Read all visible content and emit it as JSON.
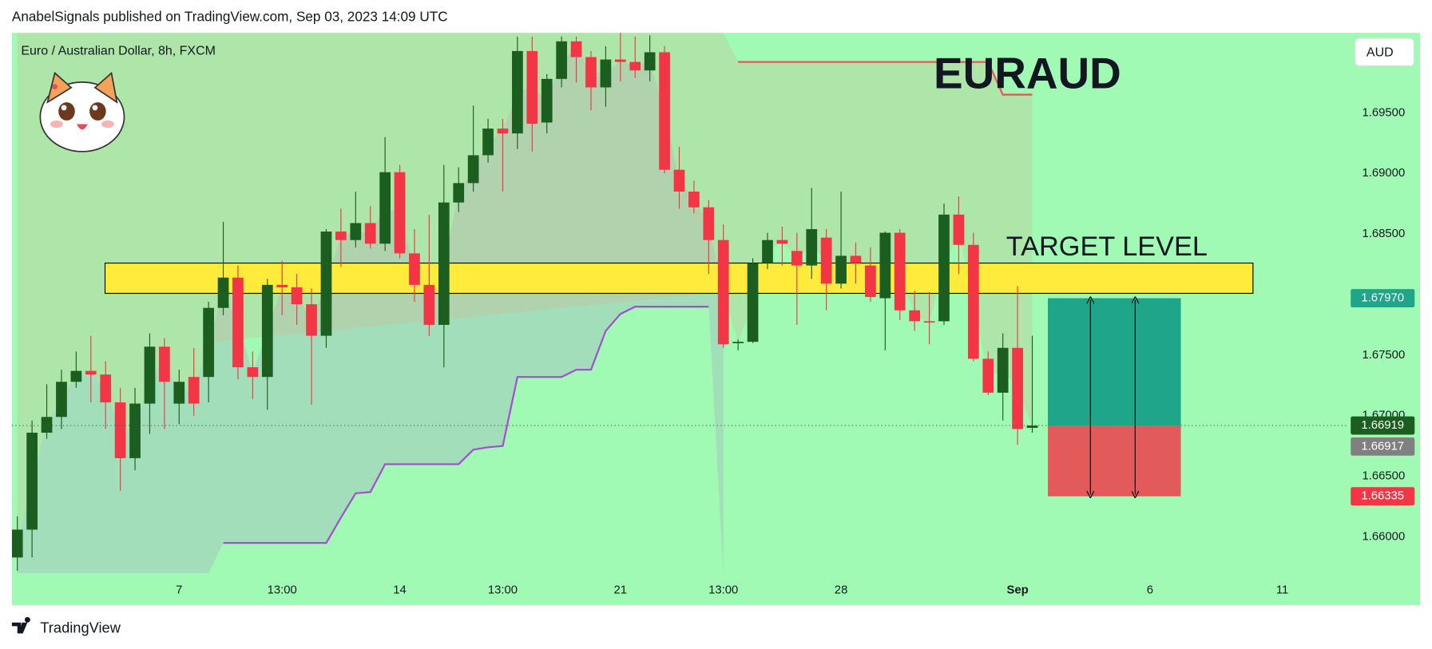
{
  "header": "AnabelSignals published on TradingView.com, Sep 03, 2023 14:09 UTC",
  "footer": "TradingView",
  "chart_data": {
    "type": "candlestick",
    "title": "Euro / Australian Dollar, 8h, FXCM",
    "currency": "AUD",
    "annotation": "EURAUD",
    "up_color": "#1b5e20",
    "down_color": "#f23645",
    "xlim": [
      -0.37,
      90.4
    ],
    "xticks": [
      {
        "value": 11,
        "label": "7"
      },
      {
        "value": 18,
        "label": "13:00"
      },
      {
        "value": 26,
        "label": "14"
      },
      {
        "value": 33,
        "label": "13:00"
      },
      {
        "value": 41,
        "label": "21"
      },
      {
        "value": 48,
        "label": "13:00"
      },
      {
        "value": 56,
        "label": "28"
      },
      {
        "value": 68,
        "label": "Sep"
      },
      {
        "value": 77,
        "label": "6"
      },
      {
        "value": 86,
        "label": "11"
      }
    ],
    "ylim": [
      1.657,
      1.7016
    ],
    "yticks": [
      {
        "value": 1.66,
        "label": "1.66000"
      },
      {
        "value": 1.665,
        "label": "1.66500"
      },
      {
        "value": 1.67,
        "label": "1.67000"
      },
      {
        "value": 1.675,
        "label": "1.67500"
      },
      {
        "value": 1.68,
        "label": "1.68000"
      },
      {
        "value": 1.685,
        "label": "1.68500"
      },
      {
        "value": 1.69,
        "label": "1.69000"
      },
      {
        "value": 1.695,
        "label": "1.69500"
      }
    ],
    "open": [
      1.6583,
      1.6606,
      1.6686,
      1.6699,
      1.6728,
      1.6737,
      1.6734,
      1.6711,
      1.6665,
      1.671,
      1.6757,
      1.671,
      1.6732,
      1.6732,
      1.6789,
      1.6814,
      1.674,
      1.6732,
      1.6808,
      1.6806,
      1.6792,
      1.6766,
      1.6852,
      1.6845,
      1.6859,
      1.6842,
      1.6901,
      1.6834,
      1.6808,
      1.6775,
      1.6876,
      1.6892,
      1.6915,
      1.6937,
      1.6933,
      1.7001,
      1.6942,
      1.6978,
      1.7009,
      1.6996,
      1.6971,
      1.6994,
      1.6992,
      1.6985,
      1.7,
      1.6903,
      1.6885,
      1.6872,
      1.6845,
      1.676,
      1.6761,
      1.6826,
      1.6845,
      1.6836,
      1.6824,
      1.6847,
      1.6809,
      1.6832,
      1.6824,
      1.6797,
      1.6851,
      1.6787,
      1.6778,
      1.6778,
      1.6866,
      1.6841,
      1.6747,
      1.6719,
      1.6756,
      1.669
    ],
    "high": [
      1.6617,
      1.6696,
      1.6726,
      1.6738,
      1.6753,
      1.6766,
      1.6745,
      1.6723,
      1.6723,
      1.6768,
      1.6764,
      1.6738,
      1.6756,
      1.6794,
      1.686,
      1.6824,
      1.6753,
      1.6813,
      1.6828,
      1.6817,
      1.6805,
      1.6854,
      1.6871,
      1.6885,
      1.6873,
      1.693,
      1.6907,
      1.6854,
      1.6866,
      1.6907,
      1.6905,
      1.6956,
      1.6945,
      1.6945,
      1.7013,
      1.7013,
      1.6982,
      1.7013,
      1.7013,
      1.7001,
      1.7005,
      1.7016,
      1.7013,
      1.7014,
      1.7005,
      1.6922,
      1.6894,
      1.6878,
      1.6858,
      1.6763,
      1.683,
      1.6851,
      1.6856,
      1.6851,
      1.6888,
      1.6854,
      1.6885,
      1.6843,
      1.6839,
      1.6852,
      1.6854,
      1.6803,
      1.6802,
      1.6875,
      1.6881,
      1.6851,
      1.6753,
      1.6768,
      1.6807,
      1.6766
    ],
    "low": [
      1.6572,
      1.6583,
      1.6681,
      1.6689,
      1.6723,
      1.6711,
      1.6689,
      1.6638,
      1.6655,
      1.6685,
      1.6689,
      1.6693,
      1.67,
      1.6711,
      1.6783,
      1.673,
      1.6714,
      1.6705,
      1.6783,
      1.6775,
      1.6709,
      1.6756,
      1.6823,
      1.6839,
      1.6838,
      1.6836,
      1.683,
      1.6794,
      1.6766,
      1.674,
      1.6868,
      1.6885,
      1.6909,
      1.6885,
      1.692,
      1.6918,
      1.6933,
      1.6971,
      1.6975,
      1.6952,
      1.6955,
      1.6976,
      1.6979,
      1.6976,
      1.69,
      1.6871,
      1.6867,
      1.6817,
      1.6756,
      1.6754,
      1.676,
      1.6821,
      1.6824,
      1.6775,
      1.6813,
      1.6787,
      1.6805,
      1.6809,
      1.6794,
      1.6754,
      1.6779,
      1.677,
      1.6759,
      1.6775,
      1.6817,
      1.6745,
      1.6717,
      1.6696,
      1.6676,
      1.6686
    ],
    "close": [
      1.6606,
      1.6686,
      1.6699,
      1.6728,
      1.6737,
      1.6734,
      1.6711,
      1.6665,
      1.671,
      1.6757,
      1.6728,
      1.6728,
      1.671,
      1.6789,
      1.6814,
      1.674,
      1.6732,
      1.6808,
      1.6806,
      1.6792,
      1.6766,
      1.6852,
      1.6845,
      1.6859,
      1.6842,
      1.6901,
      1.6834,
      1.6808,
      1.6775,
      1.6876,
      1.6892,
      1.6915,
      1.6937,
      1.6933,
      1.7001,
      1.6941,
      1.6978,
      1.7009,
      1.6996,
      1.6971,
      1.6994,
      1.6992,
      1.6985,
      1.7,
      1.6903,
      1.6885,
      1.6872,
      1.6845,
      1.6759,
      1.6761,
      1.6826,
      1.6845,
      1.6842,
      1.6824,
      1.6854,
      1.6809,
      1.6832,
      1.6826,
      1.6798,
      1.6851,
      1.6787,
      1.6778,
      1.6777,
      1.6866,
      1.6841,
      1.6747,
      1.6719,
      1.6756,
      1.6689,
      1.66919
    ],
    "supertrend": [
      {
        "color": "#a64fd0",
        "fill": "rgba(170,170,200,0.35)",
        "values": [
          null,
          null,
          null,
          null,
          null,
          null,
          null,
          null,
          null,
          null,
          null,
          null,
          null,
          null,
          1.6595,
          1.6595,
          1.6595,
          1.6595,
          1.6595,
          1.6595,
          1.6595,
          1.6595,
          1.6616,
          1.6636,
          1.6637,
          1.666,
          1.666,
          1.666,
          1.666,
          1.666,
          1.666,
          1.6672,
          1.6674,
          1.6675,
          1.6732,
          1.6732,
          1.6732,
          1.6732,
          1.6738,
          1.6738,
          1.677,
          1.6784,
          1.679,
          1.679,
          1.679,
          1.679,
          1.679,
          1.679,
          null,
          null,
          null,
          null,
          null,
          null,
          null,
          null,
          null,
          null,
          null,
          null,
          null,
          null,
          null,
          null,
          null,
          null,
          null,
          null,
          null,
          null
        ]
      },
      {
        "color": "#f0525a",
        "fill": "rgba(200,190,150,0.35)",
        "values": [
          null,
          null,
          null,
          null,
          null,
          null,
          null,
          null,
          null,
          null,
          null,
          null,
          null,
          null,
          null,
          null,
          null,
          null,
          null,
          null,
          null,
          null,
          null,
          null,
          null,
          null,
          null,
          null,
          null,
          null,
          null,
          null,
          null,
          null,
          null,
          null,
          null,
          null,
          null,
          null,
          null,
          null,
          null,
          null,
          null,
          null,
          null,
          null,
          null,
          1.6992,
          1.6992,
          1.6992,
          1.6992,
          1.6992,
          1.6992,
          1.6992,
          1.6992,
          1.6992,
          1.6992,
          1.6992,
          1.6992,
          1.6992,
          1.6992,
          1.6992,
          1.6992,
          1.6992,
          1.6992,
          1.6965,
          1.6965,
          1.6965
        ]
      }
    ],
    "zone": {
      "range": [
        1.6801,
        1.6826
      ],
      "color": "#ffeb3b",
      "label": "TARGET LEVEL"
    },
    "last_price": 1.66919,
    "position": {
      "target": {
        "value": 1.6797,
        "label": "1.67970"
      },
      "entry": 1.66917,
      "stop": 1.66335,
      "target_color": "#1ea58a",
      "stop_color": "#e35a5a"
    }
  }
}
